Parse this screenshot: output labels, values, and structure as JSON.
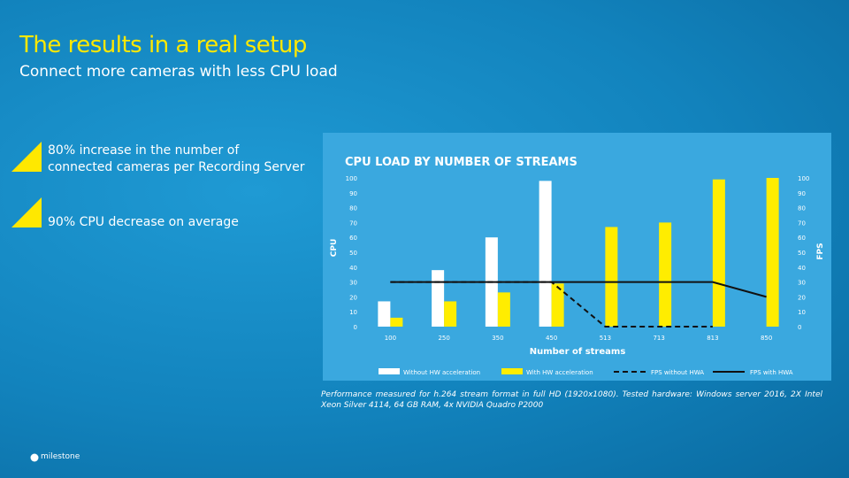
{
  "header": {
    "title": "The results in a real setup",
    "subtitle": "Connect more cameras with less CPU load"
  },
  "bullets": [
    {
      "lines": [
        "80% increase in the number of",
        "connected cameras per Recording Server"
      ]
    },
    {
      "lines": [
        "90% CPU decrease on average"
      ]
    }
  ],
  "chart_data": {
    "type": "bar",
    "title": "CPU LOAD BY NUMBER OF STREAMS",
    "x_label": "Number of streams",
    "y_label": "CPU",
    "y2_label": "FPS",
    "categories": [
      "100",
      "250",
      "350",
      "450",
      "513",
      "713",
      "813",
      "850"
    ],
    "series": [
      {
        "name": "Without HW acceleration",
        "color": "#ffffff",
        "values": [
          17,
          38,
          60,
          98,
          null,
          null,
          null,
          null
        ]
      },
      {
        "name": "With HW acceleration",
        "color": "#ffed00",
        "values": [
          6,
          17,
          23,
          29,
          67,
          70,
          99,
          100
        ]
      },
      {
        "name": "FPS without HWA",
        "type": "line",
        "dashed": true,
        "axis": "y2",
        "color": "#111111",
        "values": [
          30,
          30,
          30,
          30,
          0,
          0,
          0,
          null
        ]
      },
      {
        "name": "FPS with HWA",
        "type": "line",
        "dashed": false,
        "axis": "y2",
        "color": "#111111",
        "values": [
          30,
          30,
          30,
          30,
          30,
          30,
          30,
          20
        ]
      }
    ],
    "ylim": [
      0,
      100
    ],
    "yticks": [
      0,
      10,
      20,
      30,
      40,
      50,
      60,
      70,
      80,
      90,
      100
    ],
    "y2lim": [
      0,
      100
    ],
    "y2ticks": [
      0,
      10,
      20,
      30,
      40,
      50,
      60,
      70,
      80,
      90,
      100
    ],
    "legend": "bottom"
  },
  "footnote": "Performance measured for h.264 stream format in full HD (1920x1080). Tested hardware: Windows server 2016, 2X Intel Xeon Silver 4114, 64 GB RAM, 4x NVIDIA Quadro P2000",
  "logo": "milestone"
}
